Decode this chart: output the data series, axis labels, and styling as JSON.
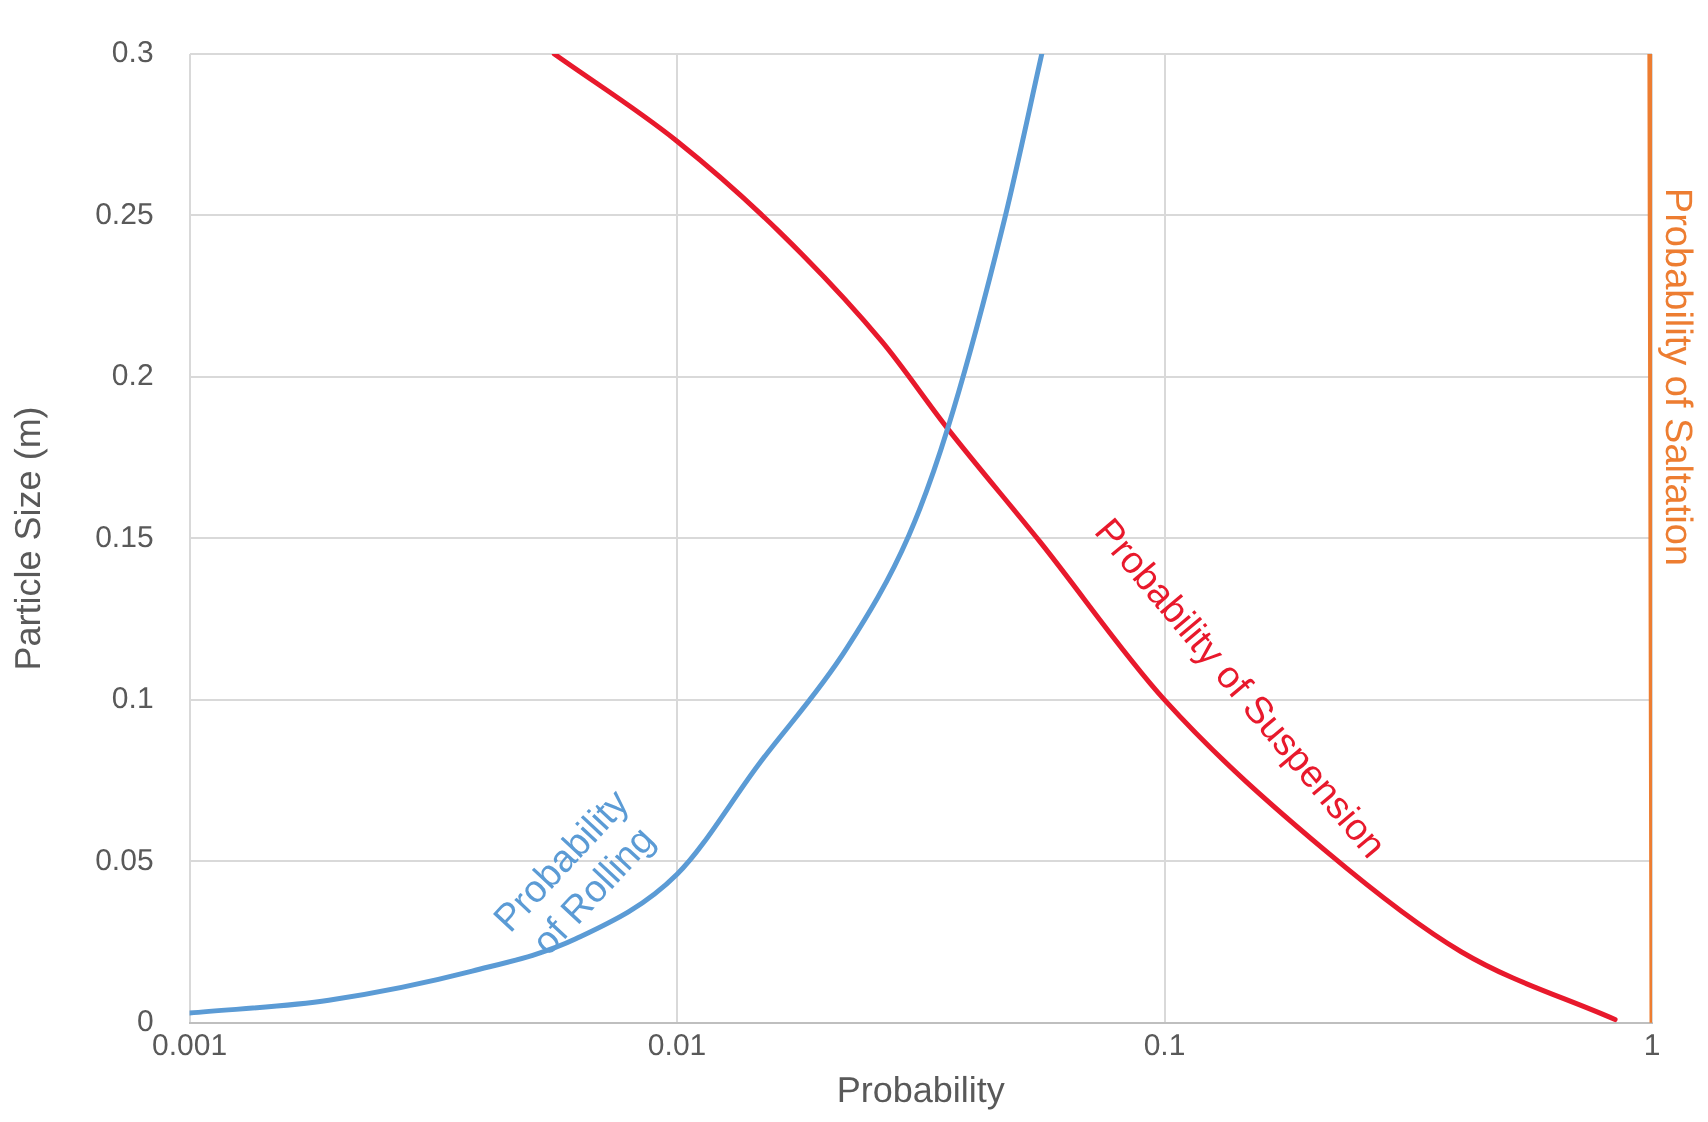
{
  "chart_data": {
    "type": "line",
    "xlabel": "Probability",
    "ylabel": "Particle Size (m)",
    "log": "x",
    "xlim": [
      0.001,
      1
    ],
    "xticks": [
      0.001,
      0.01,
      0.1,
      1
    ],
    "ylim": [
      0,
      0.3
    ],
    "yticks": [
      0,
      0.05,
      0.1,
      0.15,
      0.2,
      0.25,
      0.3
    ],
    "grid": true,
    "legend": false,
    "marker": "none",
    "line_style": "solid",
    "series": [
      {
        "name": "Probability of Rolling",
        "color": "#5b9bd5",
        "x": [
          0.001,
          0.00193,
          0.0038,
          0.0062,
          0.01,
          0.0147,
          0.0223,
          0.0299,
          0.0359,
          0.047,
          0.056
        ],
        "values": [
          0.003,
          0.007,
          0.016,
          0.026,
          0.046,
          0.08,
          0.116,
          0.151,
          0.184,
          0.249,
          0.3
        ]
      },
      {
        "name": "Probability of Suspension",
        "color": "#e8192c",
        "x": [
          0.0056,
          0.01,
          0.0162,
          0.0263,
          0.0359,
          0.0555,
          0.1,
          0.215,
          0.406,
          0.84
        ],
        "values": [
          0.3,
          0.273,
          0.245,
          0.211,
          0.184,
          0.149,
          0.1,
          0.053,
          0.022,
          0.001
        ]
      },
      {
        "name": "Probability of Saltation",
        "color": "#ed7d31",
        "x": [
          0.99,
          1
        ],
        "values": [
          0.3,
          0
        ]
      }
    ]
  }
}
